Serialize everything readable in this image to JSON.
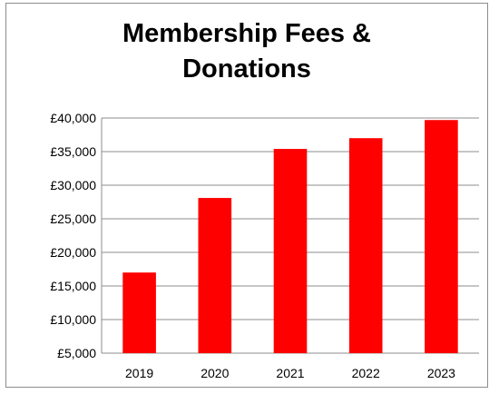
{
  "chart_data": {
    "type": "bar",
    "title_lines": [
      "Membership Fees &",
      "Donations"
    ],
    "categories": [
      "2019",
      "2020",
      "2021",
      "2022",
      "2023"
    ],
    "values": [
      17000,
      28100,
      35400,
      37000,
      39700
    ],
    "ylim": [
      5000,
      40000
    ],
    "yticks": [
      5000,
      10000,
      15000,
      20000,
      25000,
      30000,
      35000,
      40000
    ],
    "ytick_labels": [
      "£5,000",
      "£10,000",
      "£15,000",
      "£20,000",
      "£25,000",
      "£30,000",
      "£35,000",
      "£40,000"
    ],
    "bar_color": "#ff0000",
    "grid": true,
    "legend": "none"
  }
}
